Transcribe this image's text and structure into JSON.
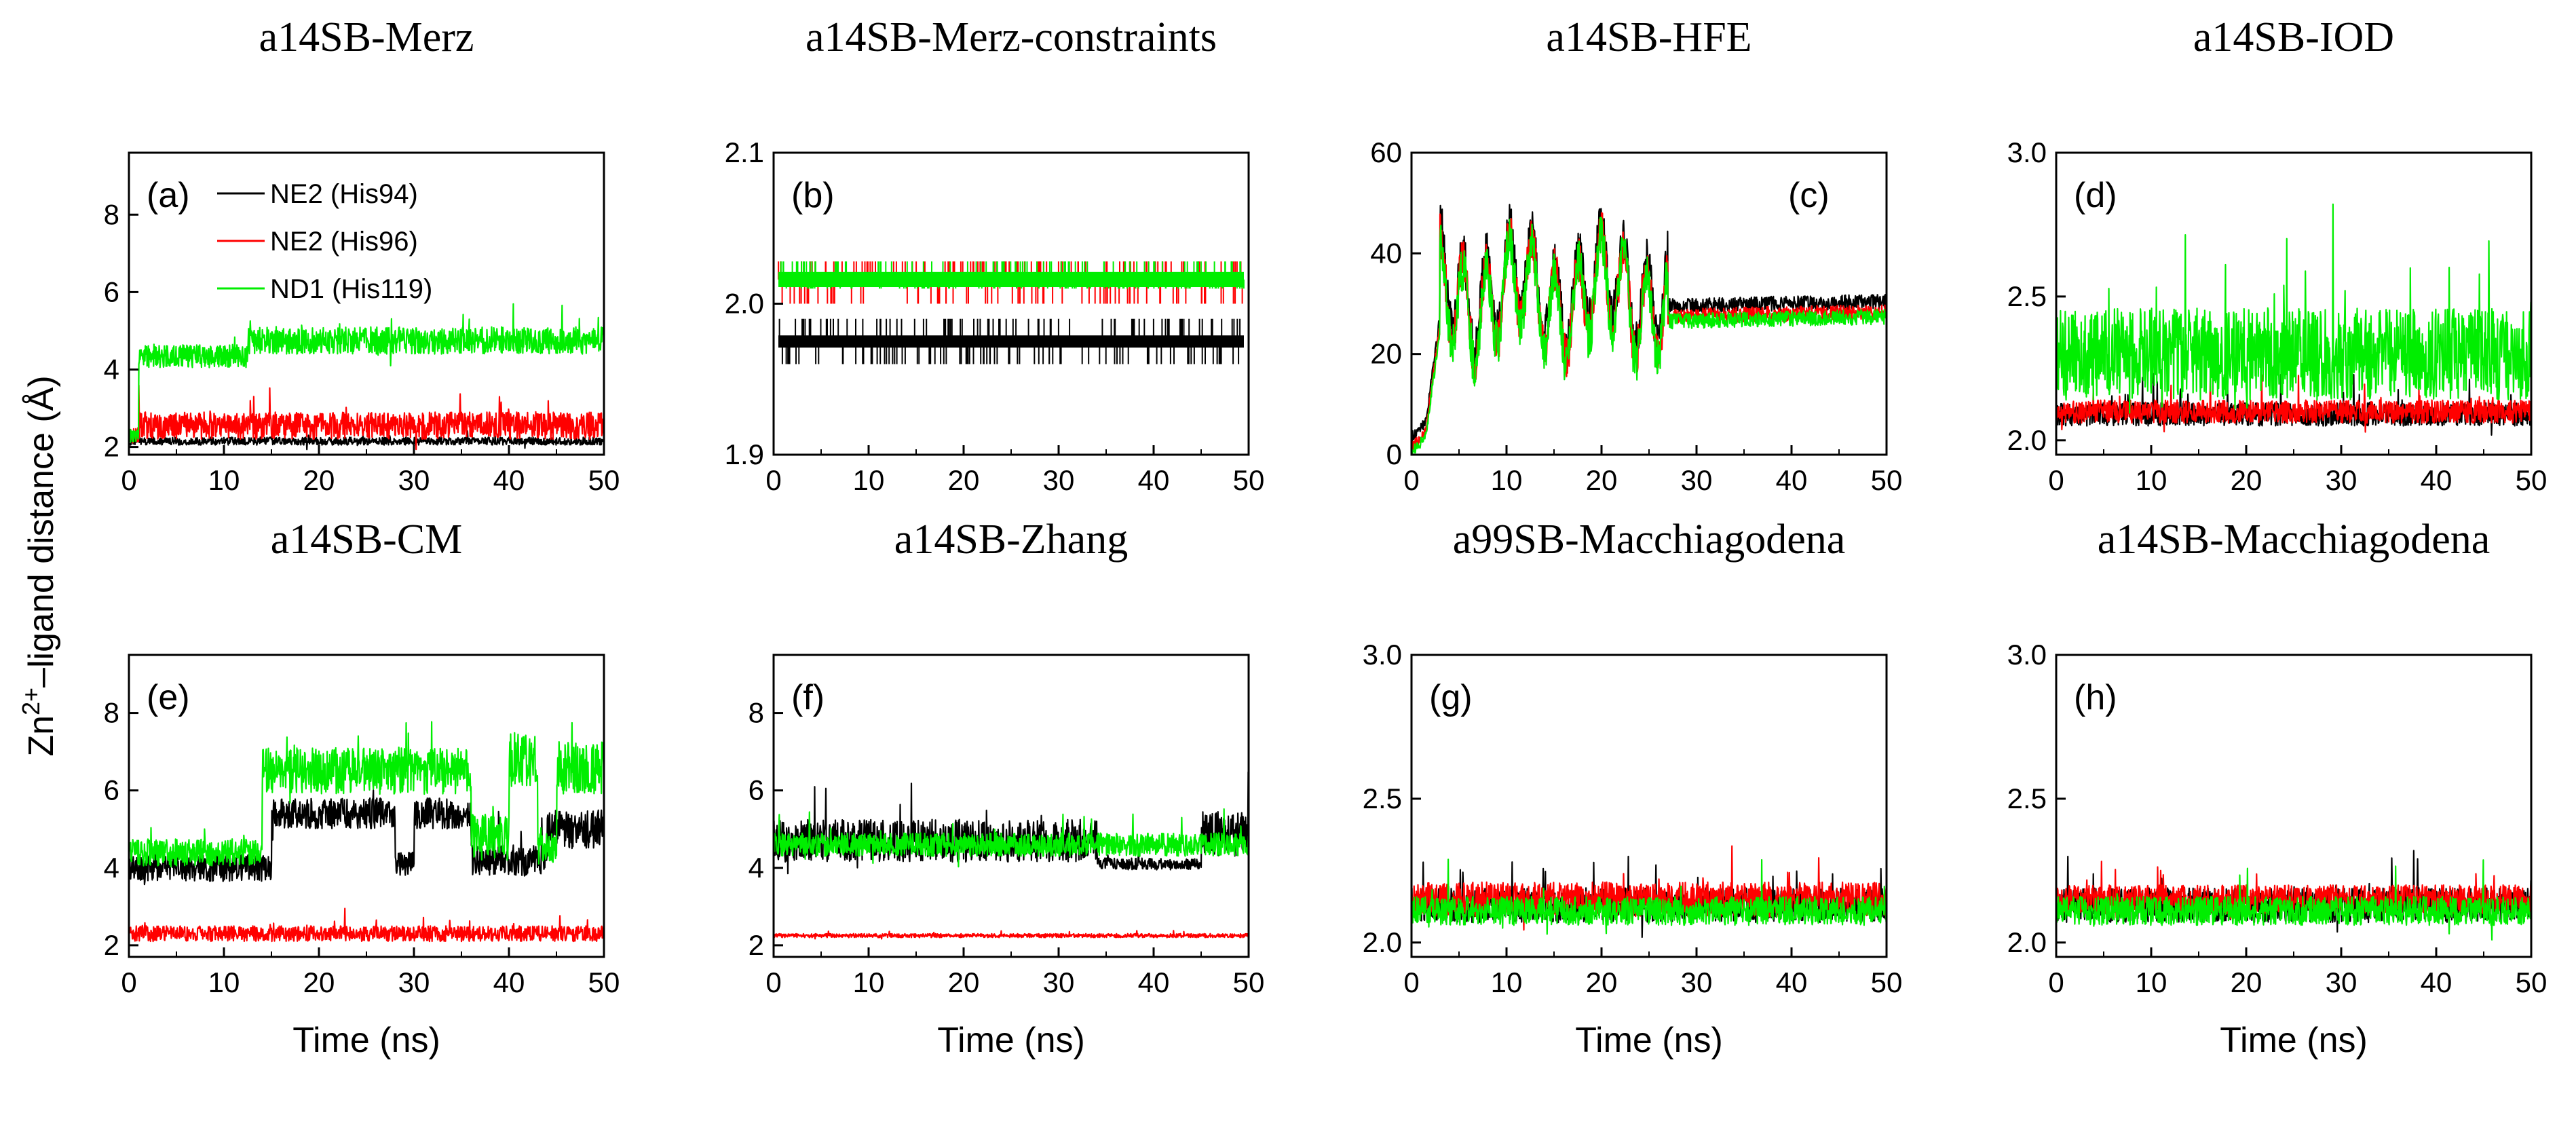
{
  "figure": {
    "ylabel_main": "Zn",
    "ylabel_sup": "2+",
    "ylabel_rest": "–ligand distance (Å)"
  },
  "chart_data": [
    {
      "type": "line",
      "id": "a",
      "title": "a14SB-Merz",
      "panel_label": "(a)",
      "xlabel": "",
      "xlim": [
        0,
        50
      ],
      "ylim": [
        1.8,
        9.6
      ],
      "xticks": [
        "0",
        "10",
        "20",
        "30",
        "40",
        "50"
      ],
      "yticks": [
        "2",
        "4",
        "6",
        "8"
      ],
      "legend": {
        "placement": "top",
        "entries": [
          "NE2 (His94)",
          "NE2 (His96)",
          "ND1 (His119)"
        ]
      },
      "series": [
        {
          "name": "NE2 (His94)",
          "color": "#000000",
          "segments": [
            {
              "t0": 0,
              "t1": 50,
              "mean": 2.15,
              "noise": 0.1
            }
          ]
        },
        {
          "name": "NE2 (His96)",
          "color": "#ff0000",
          "segments": [
            {
              "t0": 0,
              "t1": 1,
              "mean": 2.3,
              "noise": 0.2
            },
            {
              "t0": 1,
              "t1": 50,
              "mean": 2.55,
              "noise": 0.35
            }
          ]
        },
        {
          "name": "ND1 (His119)",
          "color": "#00ee00",
          "segments": [
            {
              "t0": 0,
              "t1": 1,
              "mean": 2.3,
              "noise": 0.2
            },
            {
              "t0": 1,
              "t1": 12.5,
              "mean": 4.35,
              "noise": 0.3
            },
            {
              "t0": 12.5,
              "t1": 50,
              "mean": 4.75,
              "noise": 0.35
            }
          ]
        }
      ]
    },
    {
      "type": "line",
      "id": "b",
      "title": "a14SB-Merz-constraints",
      "panel_label": "(b)",
      "xlabel": "",
      "xlim": [
        0,
        50
      ],
      "ylim": [
        1.9,
        2.1
      ],
      "xticks": [
        "0",
        "10",
        "20",
        "30",
        "40",
        "50"
      ],
      "yticks": [
        "1.9",
        "2.0",
        "2.1"
      ],
      "series": [
        {
          "name": "NE2 (His94)",
          "color": "#000000",
          "band": {
            "center": 1.975,
            "halfwidth": 0.004,
            "spikes_low": 1.96,
            "spikes_high": 1.99
          }
        },
        {
          "name": "NE2 (His96)",
          "color": "#ff0000",
          "band": {
            "center": 2.016,
            "halfwidth": 0.004,
            "spikes_low": 2.0,
            "spikes_high": 2.028
          }
        },
        {
          "name": "ND1 (His119)",
          "color": "#00ee00",
          "band": {
            "center": 2.016,
            "halfwidth": 0.005,
            "spikes_low": 2.01,
            "spikes_high": 2.028
          }
        }
      ]
    },
    {
      "type": "line",
      "id": "c",
      "title": "a14SB-HFE",
      "panel_label": "(c)",
      "xlabel": "",
      "xlim": [
        0,
        50
      ],
      "ylim": [
        0,
        60
      ],
      "xticks": [
        "0",
        "10",
        "20",
        "30",
        "40",
        "50"
      ],
      "yticks": [
        "0",
        "20",
        "40",
        "60"
      ],
      "series": [
        {
          "name": "NE2 (His94)",
          "color": "#000000",
          "profile": "hfe",
          "offset": 1.5
        },
        {
          "name": "NE2 (His96)",
          "color": "#ff0000",
          "profile": "hfe",
          "offset": -0.5
        },
        {
          "name": "ND1 (His119)",
          "color": "#00ee00",
          "profile": "hfe",
          "offset": -1.5
        }
      ]
    },
    {
      "type": "line",
      "id": "d",
      "title": "a14SB-IOD",
      "panel_label": "(d)",
      "xlabel": "",
      "xlim": [
        0,
        50
      ],
      "ylim": [
        1.95,
        3.0
      ],
      "xticks": [
        "0",
        "10",
        "20",
        "30",
        "40",
        "50"
      ],
      "yticks": [
        "2.0",
        "2.5",
        "3.0"
      ],
      "series": [
        {
          "name": "NE2 (His94)",
          "color": "#000000",
          "segments": [
            {
              "t0": 0,
              "t1": 50,
              "mean": 2.09,
              "noise": 0.04
            }
          ]
        },
        {
          "name": "NE2 (His96)",
          "color": "#ff0000",
          "segments": [
            {
              "t0": 0,
              "t1": 50,
              "mean": 2.1,
              "noise": 0.04
            }
          ]
        },
        {
          "name": "ND1 (His119)",
          "color": "#00ee00",
          "segments": [
            {
              "t0": 0,
              "t1": 50,
              "mean": 2.3,
              "noise": 0.16
            }
          ]
        }
      ]
    },
    {
      "type": "line",
      "id": "e",
      "title": "a14SB-CM",
      "panel_label": "(e)",
      "xlabel": "Time (ns)",
      "xlim": [
        0,
        50
      ],
      "ylim": [
        1.7,
        9.5
      ],
      "xticks": [
        "0",
        "10",
        "20",
        "30",
        "40",
        "50"
      ],
      "yticks": [
        "2",
        "4",
        "6",
        "8"
      ],
      "series": [
        {
          "name": "NE2 (His94)",
          "color": "#000000",
          "segments": [
            {
              "t0": 0,
              "t1": 15,
              "mean": 4.0,
              "noise": 0.35
            },
            {
              "t0": 15,
              "t1": 28,
              "mean": 5.4,
              "noise": 0.4
            },
            {
              "t0": 28,
              "t1": 30,
              "mean": 4.1,
              "noise": 0.3
            },
            {
              "t0": 30,
              "t1": 36,
              "mean": 5.4,
              "noise": 0.4
            },
            {
              "t0": 36,
              "t1": 44,
              "mean": 4.2,
              "noise": 0.4
            },
            {
              "t0": 44,
              "t1": 50,
              "mean": 5.0,
              "noise": 0.5
            }
          ]
        },
        {
          "name": "NE2 (His96)",
          "color": "#ff0000",
          "segments": [
            {
              "t0": 0,
              "t1": 50,
              "mean": 2.3,
              "noise": 0.2
            }
          ]
        },
        {
          "name": "ND1 (His119)",
          "color": "#00ee00",
          "segments": [
            {
              "t0": 0,
              "t1": 14,
              "mean": 4.4,
              "noise": 0.35
            },
            {
              "t0": 14,
              "t1": 36,
              "mean": 6.5,
              "noise": 0.6
            },
            {
              "t0": 36,
              "t1": 40,
              "mean": 4.8,
              "noise": 0.6
            },
            {
              "t0": 40,
              "t1": 43,
              "mean": 6.8,
              "noise": 0.7
            },
            {
              "t0": 43,
              "t1": 45,
              "mean": 4.5,
              "noise": 0.4
            },
            {
              "t0": 45,
              "t1": 50,
              "mean": 6.6,
              "noise": 0.7
            }
          ]
        }
      ]
    },
    {
      "type": "line",
      "id": "f",
      "title": "a14SB-Zhang",
      "panel_label": "(f)",
      "xlabel": "Time (ns)",
      "xlim": [
        0,
        50
      ],
      "ylim": [
        1.7,
        9.5
      ],
      "xticks": [
        "0",
        "10",
        "20",
        "30",
        "40",
        "50"
      ],
      "yticks": [
        "2",
        "4",
        "6",
        "8"
      ],
      "series": [
        {
          "name": "NE2 (His94)",
          "color": "#000000",
          "segments": [
            {
              "t0": 0,
              "t1": 34,
              "mean": 4.7,
              "noise": 0.55
            },
            {
              "t0": 34,
              "t1": 45,
              "mean": 4.1,
              "noise": 0.15
            },
            {
              "t0": 45,
              "t1": 50,
              "mean": 4.9,
              "noise": 0.6
            }
          ]
        },
        {
          "name": "NE2 (His96)",
          "color": "#ff0000",
          "segments": [
            {
              "t0": 0,
              "t1": 50,
              "mean": 2.25,
              "noise": 0.05
            }
          ]
        },
        {
          "name": "ND1 (His119)",
          "color": "#00ee00",
          "segments": [
            {
              "t0": 0,
              "t1": 50,
              "mean": 4.6,
              "noise": 0.3
            }
          ]
        }
      ]
    },
    {
      "type": "line",
      "id": "g",
      "title": "a99SB-Macchiagodena",
      "panel_label": "(g)",
      "xlabel": "Time (ns)",
      "xlim": [
        0,
        50
      ],
      "ylim": [
        1.95,
        3.0
      ],
      "xticks": [
        "0",
        "10",
        "20",
        "30",
        "40",
        "50"
      ],
      "yticks": [
        "2.0",
        "2.5",
        "3.0"
      ],
      "series": [
        {
          "name": "NE2 (His94)",
          "color": "#000000",
          "segments": [
            {
              "t0": 0,
              "t1": 50,
              "mean": 2.13,
              "noise": 0.06
            }
          ]
        },
        {
          "name": "NE2 (His96)",
          "color": "#ff0000",
          "segments": [
            {
              "t0": 0,
              "t1": 50,
              "mean": 2.15,
              "noise": 0.06
            }
          ]
        },
        {
          "name": "ND1 (His119)",
          "color": "#00ee00",
          "segments": [
            {
              "t0": 0,
              "t1": 50,
              "mean": 2.11,
              "noise": 0.05
            }
          ]
        }
      ]
    },
    {
      "type": "line",
      "id": "h",
      "title": "a14SB-Macchiagodena",
      "panel_label": "(h)",
      "xlabel": "Time (ns)",
      "xlim": [
        0,
        50
      ],
      "ylim": [
        1.95,
        3.0
      ],
      "xticks": [
        "0",
        "10",
        "20",
        "30",
        "40",
        "50"
      ],
      "yticks": [
        "2.0",
        "2.5",
        "3.0"
      ],
      "series": [
        {
          "name": "NE2 (His94)",
          "color": "#000000",
          "segments": [
            {
              "t0": 0,
              "t1": 50,
              "mean": 2.13,
              "noise": 0.06
            }
          ]
        },
        {
          "name": "NE2 (His96)",
          "color": "#ff0000",
          "segments": [
            {
              "t0": 0,
              "t1": 50,
              "mean": 2.15,
              "noise": 0.05
            }
          ]
        },
        {
          "name": "ND1 (His119)",
          "color": "#00ee00",
          "segments": [
            {
              "t0": 0,
              "t1": 50,
              "mean": 2.11,
              "noise": 0.05
            }
          ]
        }
      ]
    }
  ]
}
